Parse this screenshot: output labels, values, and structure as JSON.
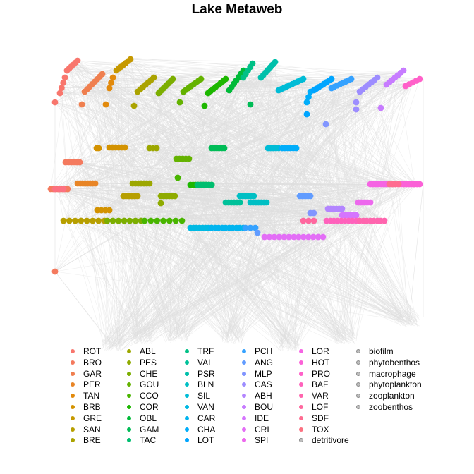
{
  "title": "Lake Metaweb",
  "colors": {
    "edge": "#e0e0e0",
    "background": "#ffffff"
  },
  "taxa": [
    {
      "code": "ROT",
      "color": "#f8766d"
    },
    {
      "code": "BRO",
      "color": "#f47a5e"
    },
    {
      "code": "GAR",
      "color": "#ef7f4f"
    },
    {
      "code": "PER",
      "color": "#e88526"
    },
    {
      "code": "TAN",
      "color": "#e28a0c"
    },
    {
      "code": "BRB",
      "color": "#d39200"
    },
    {
      "code": "GRE",
      "color": "#c69900"
    },
    {
      "code": "SAN",
      "color": "#b79f00"
    },
    {
      "code": "BRE",
      "color": "#aba300"
    },
    {
      "code": "ABL",
      "color": "#9ca700"
    },
    {
      "code": "PES",
      "color": "#8fab00"
    },
    {
      "code": "CHE",
      "color": "#7cae00"
    },
    {
      "code": "GOU",
      "color": "#64b200"
    },
    {
      "code": "CCO",
      "color": "#49b500"
    },
    {
      "code": "COR",
      "color": "#1db700"
    },
    {
      "code": "OBL",
      "color": "#00ba38"
    },
    {
      "code": "GAM",
      "color": "#00bc56"
    },
    {
      "code": "TAC",
      "color": "#00be70"
    },
    {
      "code": "TRF",
      "color": "#00c086"
    },
    {
      "code": "VAI",
      "color": "#00c19a"
    },
    {
      "code": "PSR",
      "color": "#00c0ab"
    },
    {
      "code": "BLN",
      "color": "#00bfc4"
    },
    {
      "code": "SIL",
      "color": "#00bcd6"
    },
    {
      "code": "VAN",
      "color": "#00b9e3"
    },
    {
      "code": "CAR",
      "color": "#00b4ef"
    },
    {
      "code": "CHA",
      "color": "#00adfa"
    },
    {
      "code": "LOT",
      "color": "#00a5ff"
    },
    {
      "code": "PCH",
      "color": "#35a2ff"
    },
    {
      "code": "ANG",
      "color": "#619cff"
    },
    {
      "code": "MLP",
      "color": "#8195ff"
    },
    {
      "code": "CAS",
      "color": "#9d8dff"
    },
    {
      "code": "ABH",
      "color": "#b385ff"
    },
    {
      "code": "BOU",
      "color": "#c77cff"
    },
    {
      "code": "IDE",
      "color": "#d575fe"
    },
    {
      "code": "CRI",
      "color": "#e36ef6"
    },
    {
      "code": "SPI",
      "color": "#ed68ed"
    },
    {
      "code": "LOR",
      "color": "#f564e3"
    },
    {
      "code": "HOT",
      "color": "#fb61d7"
    },
    {
      "code": "PRO",
      "color": "#ff61c9"
    },
    {
      "code": "BAF",
      "color": "#ff62bc"
    },
    {
      "code": "VAR",
      "color": "#ff65ae"
    },
    {
      "code": "LOF",
      "color": "#ff689f"
    },
    {
      "code": "SDF",
      "color": "#ff6c91"
    },
    {
      "code": "TOX",
      "color": "#fc7181"
    },
    {
      "code": "detritivore",
      "color": "#bebebe"
    },
    {
      "code": "biofilm",
      "color": "#bebebe"
    },
    {
      "code": "phytobenthos",
      "color": "#bebebe"
    },
    {
      "code": "macrophage",
      "color": "#bebebe"
    },
    {
      "code": "phytoplankton",
      "color": "#bebebe"
    },
    {
      "code": "zooplankton",
      "color": "#bebebe"
    },
    {
      "code": "zoobenthos",
      "color": "#bebebe"
    }
  ]
}
